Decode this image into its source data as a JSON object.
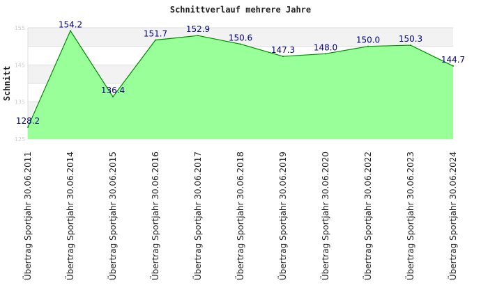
{
  "chart_data": {
    "type": "area",
    "title": "Schnittverlauf mehrere Jahre",
    "ylabel": "Schnitt",
    "xlabel": "",
    "ylim": [
      125,
      155
    ],
    "yticks": [
      "125",
      "135",
      "145",
      "155"
    ],
    "grid": true,
    "colors": {
      "fill": "#99ff99",
      "line": "#008800",
      "band": "#f2f2f2",
      "grid": "#dddddd",
      "label": "#000080"
    },
    "categories": [
      "Übertrag Sportjahr 30.06.2011",
      "Übertrag Sportjahr 30.06.2014",
      "Übertrag Sportjahr 30.06.2015",
      "Übertrag Sportjahr 30.06.2016",
      "Übertrag Sportjahr 30.06.2017",
      "Übertrag Sportjahr 30.06.2018",
      "Übertrag Sportjahr 30.06.2019",
      "Übertrag Sportjahr 30.06.2020",
      "Übertrag Sportjahr 30.06.2022",
      "Übertrag Sportjahr 30.06.2023",
      "Übertrag Sportjahr 30.06.2024"
    ],
    "values": [
      128.2,
      154.2,
      136.4,
      151.7,
      152.9,
      150.6,
      147.3,
      148.0,
      150.0,
      150.3,
      144.7
    ],
    "value_labels": [
      "128.2",
      "154.2",
      "136.4",
      "151.7",
      "152.9",
      "150.6",
      "147.3",
      "148.0",
      "150.0",
      "150.3",
      "144.7"
    ]
  }
}
